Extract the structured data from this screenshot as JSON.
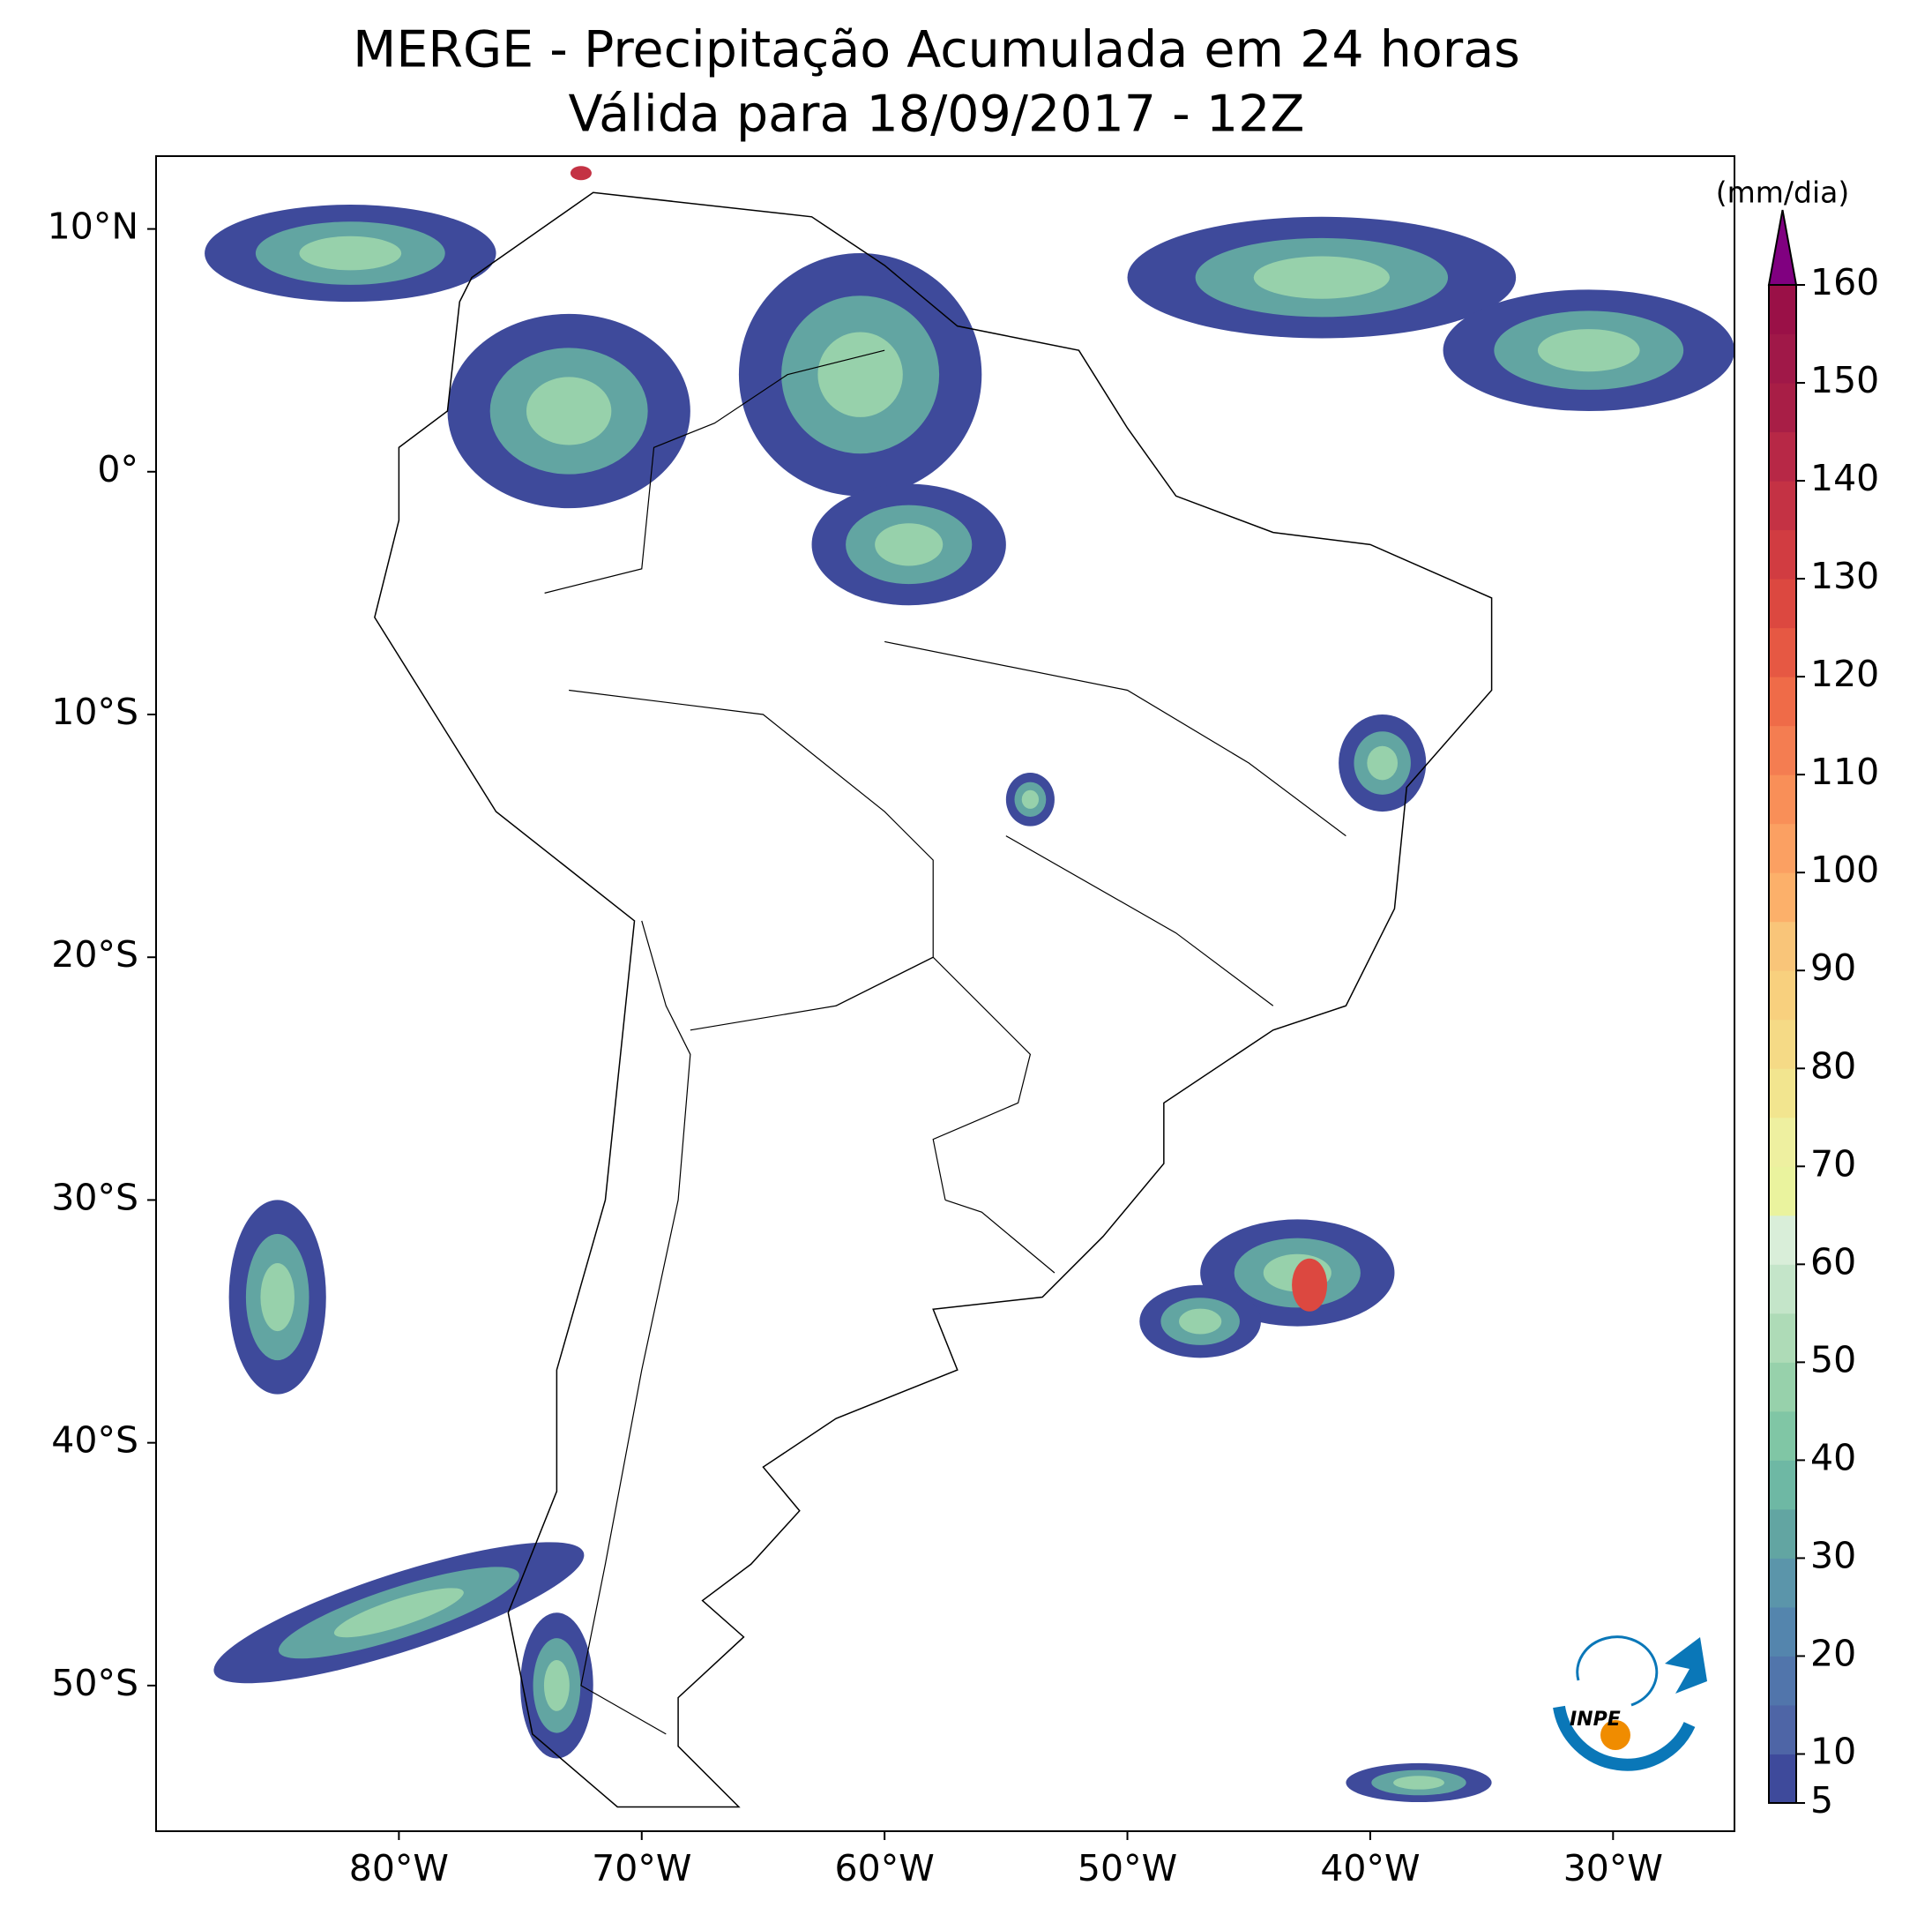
{
  "chart_data": {
    "type": "map",
    "title": "MERGE - Precipitação Acumulada em 24 horas",
    "subtitle": "Válida para 18/09/2017 - 12Z",
    "xlim": [
      -90,
      -25
    ],
    "ylim": [
      -56,
      13
    ],
    "xticks": [
      {
        "value": -80,
        "label": "80°W"
      },
      {
        "value": -70,
        "label": "70°W"
      },
      {
        "value": -60,
        "label": "60°W"
      },
      {
        "value": -50,
        "label": "50°W"
      },
      {
        "value": -40,
        "label": "40°W"
      },
      {
        "value": -30,
        "label": "30°W"
      }
    ],
    "yticks": [
      {
        "value": 10,
        "label": "10°N"
      },
      {
        "value": 0,
        "label": "0°"
      },
      {
        "value": -10,
        "label": "10°S"
      },
      {
        "value": -20,
        "label": "20°S"
      },
      {
        "value": -30,
        "label": "30°S"
      },
      {
        "value": -40,
        "label": "40°S"
      },
      {
        "value": -50,
        "label": "50°S"
      }
    ],
    "colorbar": {
      "label": "(mm/dia)",
      "ticks": [
        5,
        10,
        20,
        30,
        40,
        50,
        60,
        70,
        80,
        90,
        100,
        110,
        120,
        130,
        140,
        150,
        160
      ],
      "colors": [
        "#3e4a9b",
        "#4e65a6",
        "#5175ab",
        "#5485ad",
        "#5b95aa",
        "#62a5a2",
        "#6eb8a4",
        "#80c6a5",
        "#97d1ab",
        "#aedbb7",
        "#c4e5c9",
        "#d9eed9",
        "#eaf39e",
        "#eef0a0",
        "#f2e58f",
        "#f5da86",
        "#f8d07e",
        "#f9c579",
        "#fcb06a",
        "#fba062",
        "#f98f58",
        "#f47d51",
        "#ef6b48",
        "#e65843",
        "#dc4840",
        "#d13c41",
        "#c43244",
        "#b72846",
        "#a81e46",
        "#a01848",
        "#9a1047"
      ],
      "extend_color": "#800080"
    }
  },
  "logo": {
    "text": "INPE"
  }
}
